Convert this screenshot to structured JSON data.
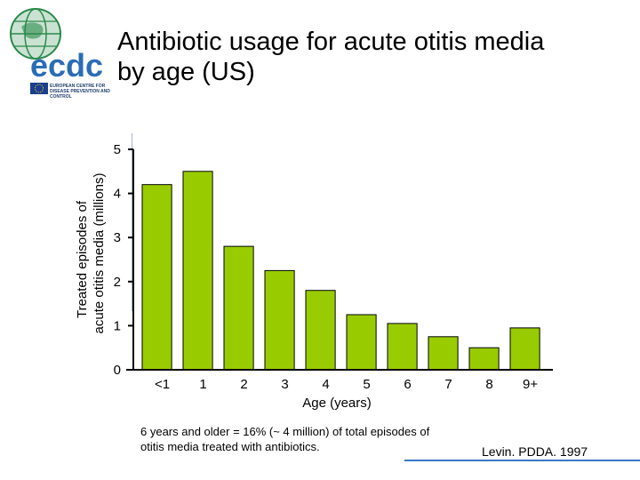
{
  "logo": {
    "wordmark": "ecdc",
    "subtitle": "EUROPEAN CENTRE FOR DISEASE PREVENTION AND CONTROL",
    "colors": {
      "globe": "#2a8a4a",
      "wordmark": "#2a6db5",
      "flag": "#1a3f8f",
      "stars": "#f2d21b"
    }
  },
  "title": {
    "line1": "Antibiotic usage for acute otitis media",
    "line2": "by age (US)"
  },
  "chart_data": {
    "type": "bar",
    "categories": [
      "<1",
      "1",
      "2",
      "3",
      "4",
      "5",
      "6",
      "7",
      "8",
      "9+"
    ],
    "values": [
      4.2,
      4.5,
      2.8,
      2.25,
      1.8,
      1.25,
      1.05,
      0.75,
      0.5,
      0.95
    ],
    "xlabel": "Age (years)",
    "ylabel_line1": "Treated episodes of",
    "ylabel_line2": "acute otitis media (millions)",
    "yticks": [
      "0",
      "1",
      "2",
      "3",
      "4",
      "5"
    ],
    "ylim": [
      0,
      5
    ],
    "bar_color": "#99cc00",
    "grid": false
  },
  "footnote": "6 years and older = 16% (~ 4 million) of total episodes of otitis media treated with antibiotics.",
  "source": "Levin. PDDA. 1997",
  "accent": "#3a78c3"
}
